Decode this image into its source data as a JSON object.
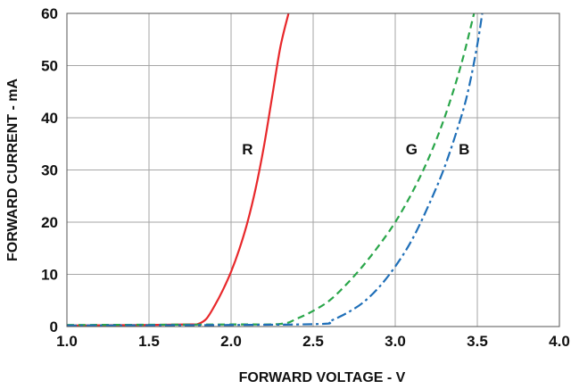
{
  "chart_data": {
    "type": "line",
    "title": "",
    "xlabel": "FORWARD VOLTAGE - V",
    "ylabel": "FORWARD CURRENT - mA",
    "xlim": [
      1.0,
      4.0
    ],
    "ylim": [
      0,
      60
    ],
    "x_ticks": [
      "1.0",
      "1.5",
      "2.0",
      "2.5",
      "3.0",
      "3.5",
      "4.0"
    ],
    "y_ticks": [
      "0",
      "10",
      "20",
      "30",
      "40",
      "50",
      "60"
    ],
    "grid": true,
    "series": [
      {
        "name": "R",
        "color": "#e8282b",
        "dash": "solid",
        "x": [
          1.0,
          1.5,
          1.75,
          1.8,
          1.85,
          1.9,
          1.95,
          2.0,
          2.05,
          2.1,
          2.15,
          2.2,
          2.25,
          2.3,
          2.35
        ],
        "y": [
          0.2,
          0.3,
          0.4,
          0.5,
          1.5,
          4.0,
          7.0,
          10.5,
          14.8,
          20.0,
          26.5,
          34.5,
          44.0,
          53.5,
          60.0
        ]
      },
      {
        "name": "G",
        "color": "#2aa64a",
        "dash": "dashed",
        "x": [
          1.0,
          2.0,
          2.3,
          2.4,
          2.5,
          2.6,
          2.7,
          2.8,
          2.9,
          3.0,
          3.1,
          3.2,
          3.3,
          3.4,
          3.48
        ],
        "y": [
          0.3,
          0.4,
          0.5,
          1.5,
          3.0,
          5.0,
          8.0,
          11.5,
          15.5,
          20.0,
          25.5,
          32.0,
          40.0,
          50.0,
          60.0
        ]
      },
      {
        "name": "B",
        "color": "#1f6fb8",
        "dash": "dashdot",
        "x": [
          1.0,
          2.0,
          2.55,
          2.6,
          2.7,
          2.8,
          2.9,
          3.0,
          3.1,
          3.2,
          3.3,
          3.4,
          3.45,
          3.5,
          3.53
        ],
        "y": [
          0.2,
          0.3,
          0.5,
          1.0,
          2.5,
          4.5,
          7.5,
          11.5,
          16.5,
          23.0,
          30.5,
          40.0,
          46.0,
          54.0,
          60.0
        ]
      }
    ],
    "annotations": [
      {
        "text": "R",
        "x": 2.1,
        "y": 33
      },
      {
        "text": "G",
        "x": 3.1,
        "y": 33
      },
      {
        "text": "B",
        "x": 3.42,
        "y": 33
      }
    ]
  }
}
